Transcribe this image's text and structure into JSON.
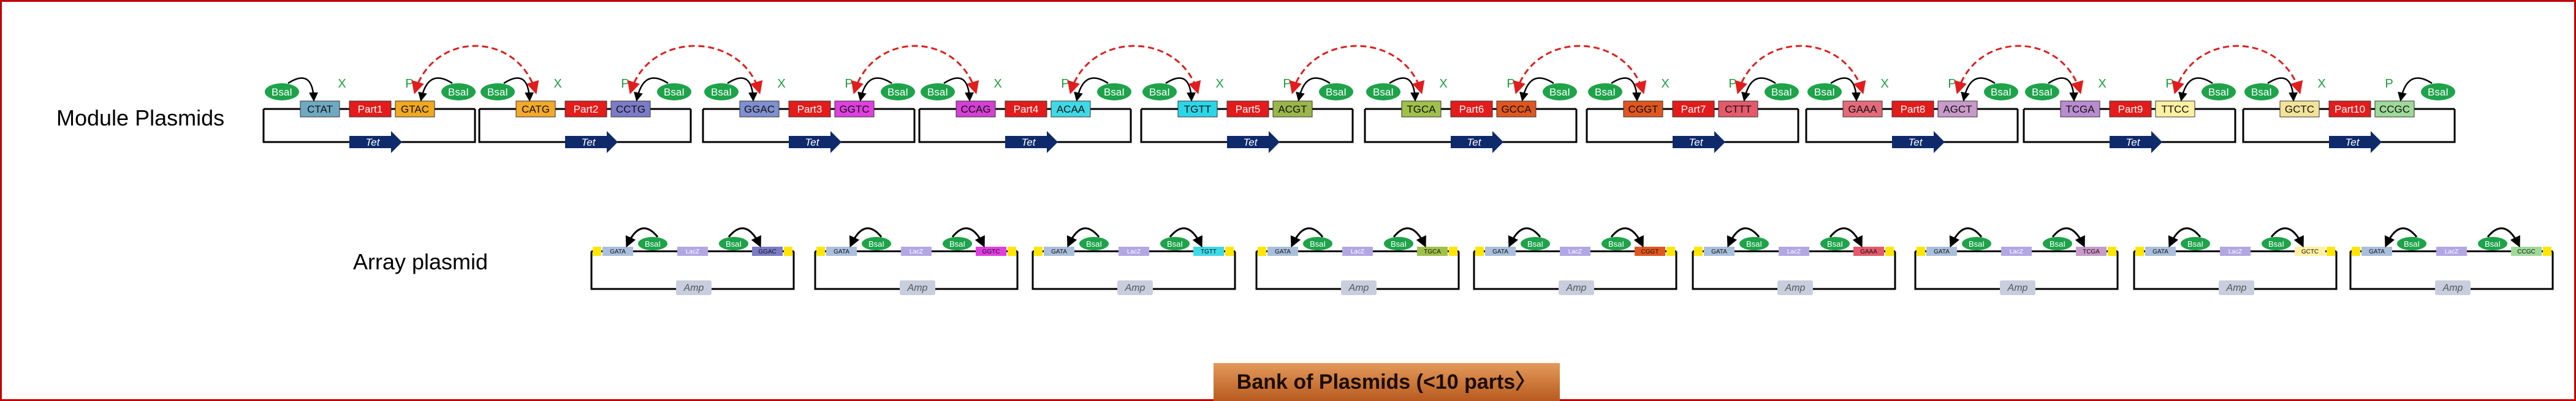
{
  "labels": {
    "module_title": "Module Plasmids",
    "array_title": "Array plasmid",
    "bank_title": "Bank of Plasmids (<10 parts〉"
  },
  "colors": {
    "frame": "#c00000",
    "bsai": "#1ea34a",
    "part": "#e41b1b",
    "tet": "#0f2a6b",
    "amp": "#c8cede",
    "arrow": "#e11d1d",
    "bank_bg": "#c76a2a",
    "spacer": "#ffe600",
    "lacz": "#b3a7e3",
    "gata": "#a9bfdc"
  },
  "common": {
    "bsai": "BsaI",
    "x": "X",
    "p": "P",
    "tet": "Tet",
    "amp": "Amp",
    "lacz": "LacZ"
  },
  "modules": [
    {
      "left": "CTAT",
      "part": "Part1",
      "right": "GTAC",
      "lc": "#6fa9c1",
      "rc": "#f0a81e"
    },
    {
      "left": "CATG",
      "part": "Part2",
      "right": "CCTG",
      "lc": "#f4a92a",
      "rc": "#7c7bc8"
    },
    {
      "left": "GGAC",
      "part": "Part3",
      "right": "GGTC",
      "lc": "#7f8fd0",
      "rc": "#e03fe0"
    },
    {
      "left": "CCAG",
      "part": "Part4",
      "right": "ACAA",
      "lc": "#d43fd4",
      "rc": "#3fd9e6"
    },
    {
      "left": "TGTT",
      "part": "Part5",
      "right": "ACGT",
      "lc": "#2ad7e8",
      "rc": "#9ab64a"
    },
    {
      "left": "TGCA",
      "part": "Part6",
      "right": "GCCA",
      "lc": "#9fc04a",
      "rc": "#e0561f"
    },
    {
      "left": "CGGT",
      "part": "Part7",
      "right": "CTTT",
      "lc": "#e0561f",
      "rc": "#e45a6b"
    },
    {
      "left": "GAAA",
      "part": "Part8",
      "right": "AGCT",
      "lc": "#e46a7a",
      "rc": "#c89ac9"
    },
    {
      "left": "TCGA",
      "part": "Part9",
      "right": "TTCC",
      "lc": "#b98cd0",
      "rc": "#fff0a3"
    },
    {
      "left": "GCTC",
      "part": "Part10",
      "right": "CCGC",
      "lc": "#f3e39a",
      "rc": "#9ed99a"
    }
  ],
  "arrays": [
    {
      "left": "GATA",
      "right": "GGAC",
      "rc": "#7c7bc8"
    },
    {
      "left": "GATA",
      "right": "GGTC",
      "rc": "#e03fe0"
    },
    {
      "left": "GATA",
      "right": "TGTT",
      "rc": "#3fd9e6"
    },
    {
      "left": "GATA",
      "right": "TGCA",
      "rc": "#9fc04a"
    },
    {
      "left": "GATA",
      "right": "CGGT",
      "rc": "#e0561f"
    },
    {
      "left": "GATA",
      "right": "GAAA",
      "rc": "#e45a6b"
    },
    {
      "left": "GATA",
      "right": "TCGA",
      "rc": "#c89ac9"
    },
    {
      "left": "GATA",
      "right": "GCTC",
      "rc": "#fff0a3"
    },
    {
      "left": "GATA",
      "right": "CCGC",
      "rc": "#9ed99a"
    }
  ]
}
